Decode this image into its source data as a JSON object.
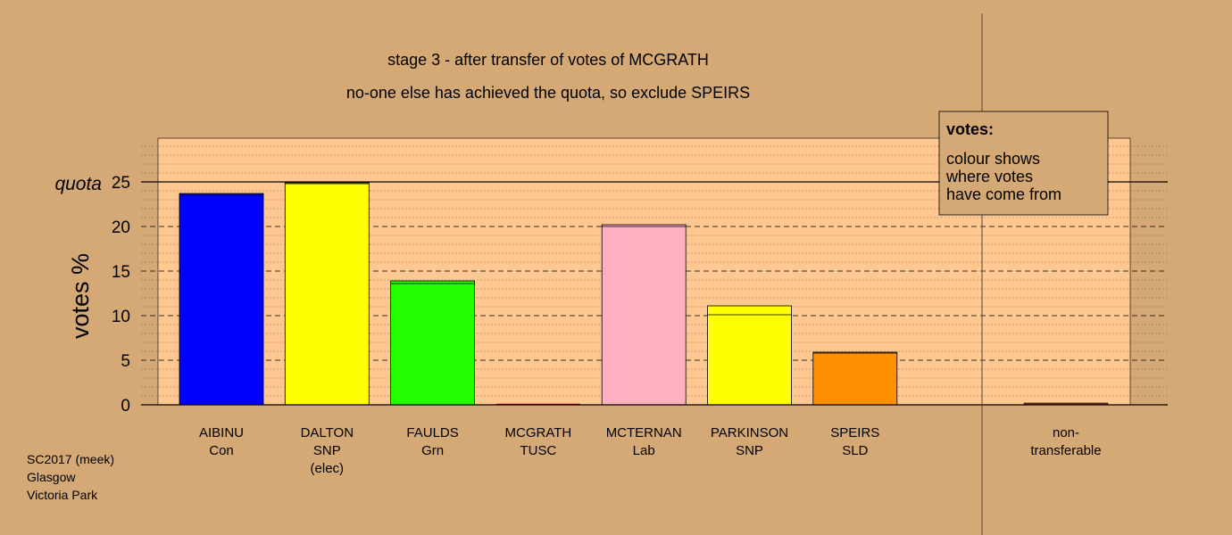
{
  "chart_data": {
    "type": "bar",
    "title": "stage 3 - after transfer of votes of MCGRATH",
    "subtitle": "no-one else has achieved the quota, so exclude SPEIRS",
    "ylabel": "votes %",
    "quota_label": "quota",
    "quota": 25,
    "ylim": [
      0,
      30
    ],
    "yticks": [
      0,
      5,
      10,
      15,
      20,
      25
    ],
    "grid": "dashed every 5, dotted every 1",
    "legend": {
      "title": "votes:",
      "lines": [
        "colour shows",
        "where votes",
        "have come from"
      ],
      "placement": "top-right"
    },
    "categories": [
      {
        "lines": [
          "AIBINU",
          "Con"
        ],
        "value": 23.7,
        "base": 23.5,
        "color": "#0000ff"
      },
      {
        "lines": [
          "DALTON",
          "SNP",
          "(elec)"
        ],
        "value": 24.9,
        "base": 24.8,
        "color": "#ffff00"
      },
      {
        "lines": [
          "FAULDS",
          "Grn"
        ],
        "value": 13.9,
        "base": 13.6,
        "color": "#22ff00"
      },
      {
        "lines": [
          "MCGRATH",
          "TUSC"
        ],
        "value": 0,
        "base": 0,
        "color": "#cc0000"
      },
      {
        "lines": [
          "MCTERNAN",
          "Lab"
        ],
        "value": 20.2,
        "base": 20.0,
        "color": "#ffb0c0"
      },
      {
        "lines": [
          "PARKINSON",
          "SNP"
        ],
        "value": 11.1,
        "base": 10.1,
        "color": "#ffff00"
      },
      {
        "lines": [
          "SPEIRS",
          "SLD"
        ],
        "value": 5.9,
        "base": 5.8,
        "color": "#ff9000"
      }
    ],
    "nontransferable": {
      "lines": [
        "non-",
        "transferable"
      ],
      "value": 0.2
    }
  },
  "footer": [
    "SC2017 (meek)",
    "Glasgow",
    "Victoria Park"
  ]
}
